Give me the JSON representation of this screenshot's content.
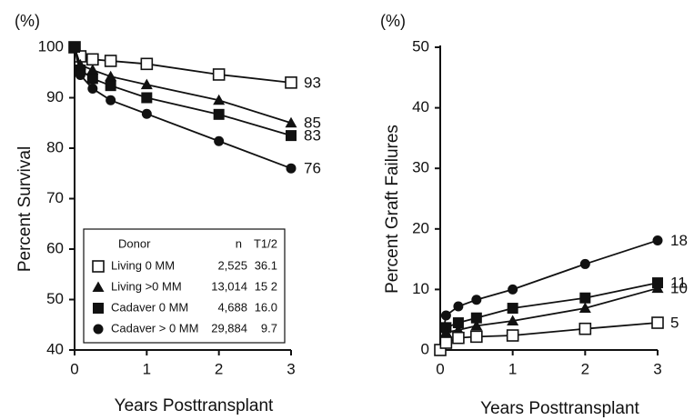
{
  "chart_data": [
    {
      "type": "line",
      "unit_label": "(%)",
      "xlabel": "Years Posttransplant",
      "ylabel": "Percent Survival",
      "xlim": [
        0,
        3
      ],
      "ylim": [
        40,
        100
      ],
      "xticks": [
        0,
        1,
        2,
        3
      ],
      "yticks": [
        40,
        50,
        60,
        70,
        80,
        90,
        100
      ],
      "grid": false,
      "legend_position": "bottom-right",
      "legend": {
        "header": {
          "donor": "Donor",
          "n": "n",
          "t": "T1/2"
        },
        "rows": [
          {
            "label": "Living 0 MM",
            "n": "2,525",
            "t": "36.1",
            "marker": "square-open"
          },
          {
            "label": "Living >0 MM",
            "n": "13,014",
            "t": "15 2",
            "marker": "triangle-filled"
          },
          {
            "label": "Cadaver  0 MM",
            "n": "4,688",
            "t": "16.0",
            "marker": "square-filled"
          },
          {
            "label": "Cadaver > 0 MM",
            "n": "29,884",
            "t": "9.7",
            "marker": "circle-filled"
          }
        ]
      },
      "series": [
        {
          "marker": "square-open",
          "end_label": "93",
          "x": [
            0,
            0.08,
            0.25,
            0.5,
            1,
            2,
            3
          ],
          "y": [
            100,
            98.2,
            97.6,
            97.3,
            96.7,
            94.6,
            93.0
          ]
        },
        {
          "marker": "triangle-filled",
          "end_label": "85",
          "x": [
            0,
            0.08,
            0.25,
            0.5,
            1,
            2,
            3
          ],
          "y": [
            100,
            96.5,
            95.5,
            94.2,
            92.6,
            89.5,
            85.0
          ]
        },
        {
          "marker": "square-filled",
          "end_label": "83",
          "x": [
            0,
            0.08,
            0.25,
            0.5,
            1,
            2,
            3
          ],
          "y": [
            100,
            95.5,
            93.8,
            92.4,
            90.0,
            86.7,
            82.5
          ]
        },
        {
          "marker": "circle-filled",
          "end_label": "76",
          "x": [
            0,
            0.08,
            0.25,
            0.5,
            1,
            2,
            3
          ],
          "y": [
            100,
            94.5,
            91.8,
            89.5,
            86.8,
            81.4,
            76.0
          ]
        }
      ]
    },
    {
      "type": "line",
      "unit_label": "(%)",
      "xlabel": "Years Posttransplant",
      "ylabel": "Percent Graft Failures",
      "xlim": [
        0,
        3
      ],
      "ylim": [
        0,
        50
      ],
      "xticks": [
        0,
        1,
        2,
        3
      ],
      "yticks": [
        0,
        10,
        20,
        30,
        40,
        50
      ],
      "grid": false,
      "series": [
        {
          "marker": "circle-filled",
          "end_label": "18",
          "x": [
            0,
            0.08,
            0.25,
            0.5,
            1,
            2,
            3
          ],
          "y": [
            0,
            5.7,
            7.2,
            8.3,
            10.0,
            14.2,
            18.1
          ]
        },
        {
          "marker": "square-filled",
          "end_label": "11",
          "x": [
            0,
            0.08,
            0.25,
            0.5,
            1,
            2,
            3
          ],
          "y": [
            0,
            3.7,
            4.5,
            5.3,
            6.9,
            8.6,
            11.1
          ]
        },
        {
          "marker": "triangle-filled",
          "end_label": "10",
          "x": [
            0,
            0.08,
            0.25,
            0.5,
            1,
            2,
            3
          ],
          "y": [
            0,
            2.9,
            3.3,
            4.0,
            4.8,
            6.9,
            10.2
          ]
        },
        {
          "marker": "square-open",
          "end_label": "5",
          "x": [
            0,
            0.08,
            0.25,
            0.5,
            1,
            2,
            3
          ],
          "y": [
            0,
            1.2,
            2.0,
            2.2,
            2.4,
            3.5,
            4.5
          ]
        }
      ]
    }
  ]
}
